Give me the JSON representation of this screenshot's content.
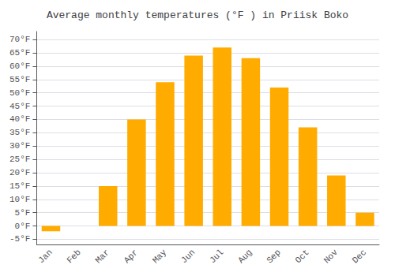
{
  "chart_data": {
    "type": "bar",
    "title": "Average monthly temperatures (°F ) in Priisk Boko",
    "categories": [
      "Jan",
      "Feb",
      "Mar",
      "Apr",
      "May",
      "Jun",
      "Jul",
      "Aug",
      "Sep",
      "Oct",
      "Nov",
      "Dec"
    ],
    "values": [
      -2,
      0,
      15,
      40,
      54,
      64,
      67,
      63,
      52,
      37,
      19,
      5
    ],
    "color": "#FFAB00",
    "ylim": [
      -7,
      73
    ],
    "yticks": [
      {
        "value": -5,
        "label": "-5°F"
      },
      {
        "value": 0,
        "label": "0°F"
      },
      {
        "value": 5,
        "label": "5°F"
      },
      {
        "value": 10,
        "label": "10°F"
      },
      {
        "value": 15,
        "label": "15°F"
      },
      {
        "value": 20,
        "label": "20°F"
      },
      {
        "value": 25,
        "label": "25°F"
      },
      {
        "value": 30,
        "label": "30°F"
      },
      {
        "value": 35,
        "label": "35°F"
      },
      {
        "value": 40,
        "label": "40°F"
      },
      {
        "value": 45,
        "label": "45°F"
      },
      {
        "value": 50,
        "label": "50°F"
      },
      {
        "value": 55,
        "label": "55°F"
      },
      {
        "value": 60,
        "label": "60°F"
      },
      {
        "value": 65,
        "label": "65°F"
      },
      {
        "value": 70,
        "label": "70°F"
      }
    ],
    "grid": true
  }
}
